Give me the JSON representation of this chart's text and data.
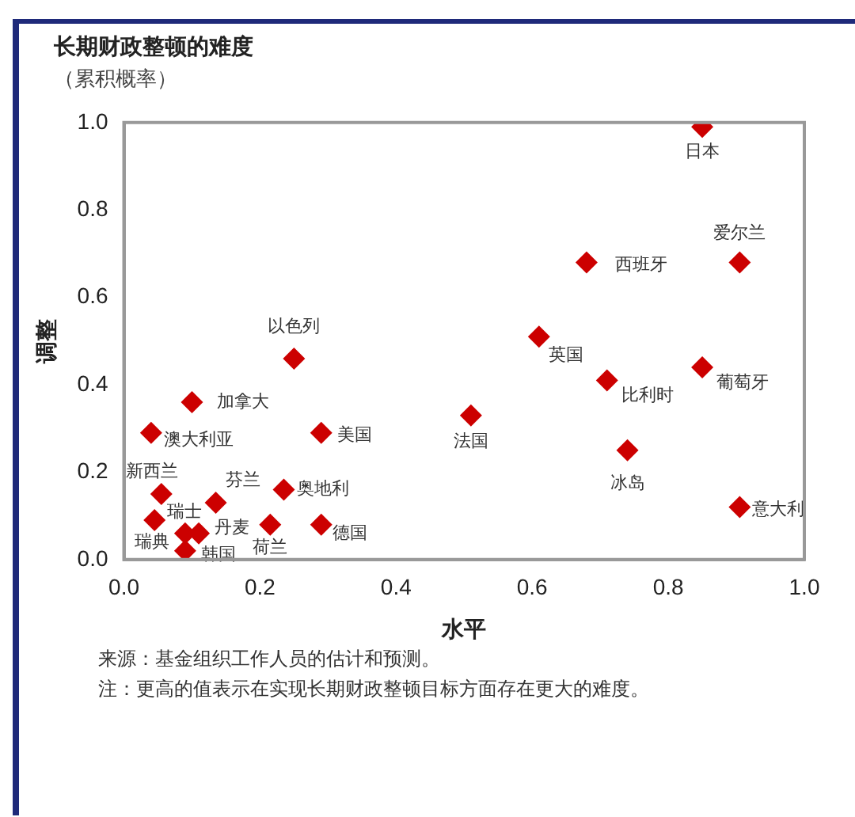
{
  "chart_data": {
    "type": "scatter",
    "title": "长期财政整顿的难度",
    "subtitle": "（累积概率）",
    "xlabel": "水平",
    "ylabel": "调整",
    "x": [
      0.85,
      0.905,
      0.68,
      0.25,
      0.61,
      0.85,
      0.71,
      0.1,
      0.04,
      0.29,
      0.51,
      0.74,
      0.905,
      0.055,
      0.135,
      0.235,
      0.045,
      0.215,
      0.29,
      0.09,
      0.11,
      0.09
    ],
    "series": [
      {
        "color": "#cc0000",
        "values": [
          0.99,
          0.68,
          0.68,
          0.46,
          0.51,
          0.44,
          0.41,
          0.36,
          0.29,
          0.29,
          0.33,
          0.25,
          0.12,
          0.15,
          0.13,
          0.16,
          0.09,
          0.08,
          0.08,
          0.06,
          0.06,
          0.02
        ]
      }
    ],
    "xlim": [
      0,
      1
    ],
    "ylim": [
      0,
      1
    ],
    "xticks": [
      {
        "value": 0,
        "label": "0.0"
      },
      {
        "value": 0.2,
        "label": "0.2"
      },
      {
        "value": 0.4,
        "label": "0.4"
      },
      {
        "value": 0.6,
        "label": "0.6"
      },
      {
        "value": 0.8,
        "label": "0.8"
      },
      {
        "value": 1,
        "label": "1.0"
      }
    ],
    "yticks": [
      {
        "value": 0,
        "label": "0.0"
      },
      {
        "value": 0.2,
        "label": "0.2"
      },
      {
        "value": 0.4,
        "label": "0.4"
      },
      {
        "value": 0.6,
        "label": "0.6"
      },
      {
        "value": 0.8,
        "label": "0.8"
      },
      {
        "value": 1,
        "label": "1.0"
      }
    ],
    "grid": false,
    "legend": false,
    "marker": "diamond",
    "annotations": [
      {
        "text": "日本",
        "x": 0.85,
        "y": 0.99
      },
      {
        "text": "爱尔兰",
        "x": 0.905,
        "y": 0.68
      },
      {
        "text": "西班牙",
        "x": 0.68,
        "y": 0.68
      },
      {
        "text": "以色列",
        "x": 0.25,
        "y": 0.46
      },
      {
        "text": "英国",
        "x": 0.61,
        "y": 0.51
      },
      {
        "text": "葡萄牙",
        "x": 0.85,
        "y": 0.44
      },
      {
        "text": "比利时",
        "x": 0.71,
        "y": 0.41
      },
      {
        "text": "加拿大",
        "x": 0.1,
        "y": 0.36
      },
      {
        "text": "澳大利亚",
        "x": 0.04,
        "y": 0.29
      },
      {
        "text": "美国",
        "x": 0.29,
        "y": 0.29
      },
      {
        "text": "法国",
        "x": 0.51,
        "y": 0.33
      },
      {
        "text": "冰岛",
        "x": 0.74,
        "y": 0.25
      },
      {
        "text": "意大利",
        "x": 0.905,
        "y": 0.12
      },
      {
        "text": "新西兰",
        "x": 0.055,
        "y": 0.15
      },
      {
        "text": "芬兰",
        "x": 0.135,
        "y": 0.13
      },
      {
        "text": "奥地利",
        "x": 0.235,
        "y": 0.16
      },
      {
        "text": "瑞士",
        "x": 0.045,
        "y": 0.09
      },
      {
        "text": "荷兰",
        "x": 0.215,
        "y": 0.08
      },
      {
        "text": "德国",
        "x": 0.29,
        "y": 0.08
      },
      {
        "text": "瑞典",
        "x": 0.09,
        "y": 0.06
      },
      {
        "text": "丹麦",
        "x": 0.11,
        "y": 0.06
      },
      {
        "text": "韩国",
        "x": 0.09,
        "y": 0.02
      },
      "来源：基金组织工作人员的估计和预测。",
      "注：更高的值表示在实现长期财政整顿目标方面存在更大的难度。"
    ]
  }
}
